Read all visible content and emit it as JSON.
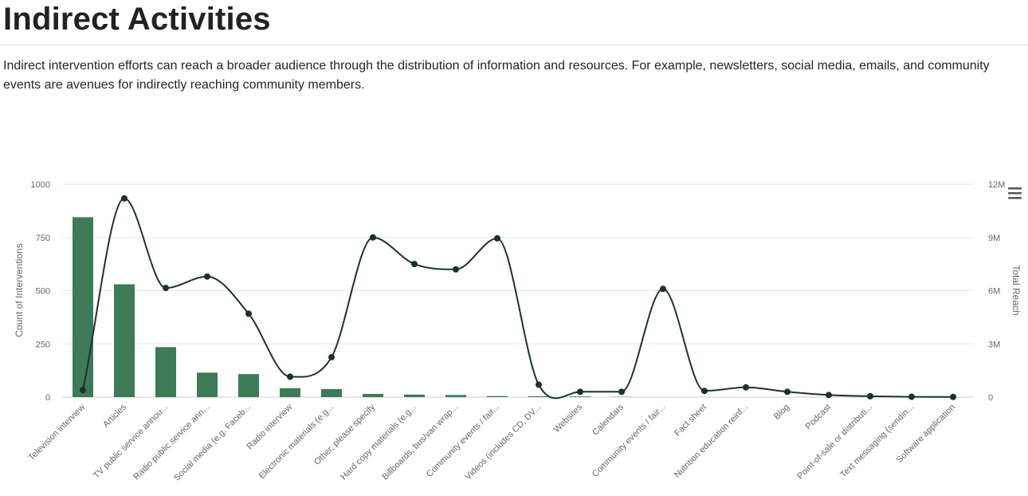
{
  "page": {
    "title": "Indirect Activities",
    "intro": "Indirect intervention efforts can reach a broader audience through the distribution of information and resources. For example, newsletters, social media, emails, and community events are avenues for indirectly reaching community members."
  },
  "chart_data": {
    "type": "bar",
    "title": "",
    "xlabel": "",
    "ylabel": "Count of Interventions",
    "y2label": "Total Reach",
    "ylim": [
      0,
      1000
    ],
    "y2lim": [
      0,
      12000000
    ],
    "yticks": [
      "0",
      "250",
      "500",
      "750",
      "1000"
    ],
    "y2ticks": [
      "0",
      "3M",
      "6M",
      "9M",
      "12M"
    ],
    "grid": true,
    "legend": "none",
    "colors": {
      "bars": "#3d7a58",
      "line": "#1b3326",
      "grid": "#e6e6e6"
    },
    "menu_icon": "hamburger-menu-icon",
    "categories": [
      "Television interview",
      "Articles",
      "TV public service annou...",
      "Radio public service ann...",
      "Social media (e.g. Faceb...",
      "Radio interview",
      "Electronic materials (e.g...",
      "Other, please specify",
      "Hard copy materials (e.g...",
      "Billboards, bus/van wrap...",
      "Community events / fair...",
      "Videos (includes CD, DV...",
      "Websites",
      "Calendars",
      "Community events / fair...",
      "Fact sheet",
      "Nutrition education reinf...",
      "Blog",
      "Podcast",
      "Point-of-sale or distributi...",
      "Text messaging (sendin...",
      "Software application"
    ],
    "series": [
      {
        "type": "bar",
        "axis": "left",
        "values": [
          845,
          530,
          235,
          115,
          108,
          42,
          38,
          15,
          12,
          10,
          5,
          4,
          3,
          1,
          0,
          0,
          0,
          0,
          0,
          0,
          0,
          0
        ]
      },
      {
        "type": "spline",
        "axis": "right",
        "values": [
          400000,
          11200000,
          6150000,
          6800000,
          4700000,
          1150000,
          2250000,
          9000000,
          7500000,
          7200000,
          8950000,
          700000,
          300000,
          300000,
          6100000,
          350000,
          550000,
          300000,
          120000,
          50000,
          20000,
          10000
        ]
      }
    ]
  }
}
